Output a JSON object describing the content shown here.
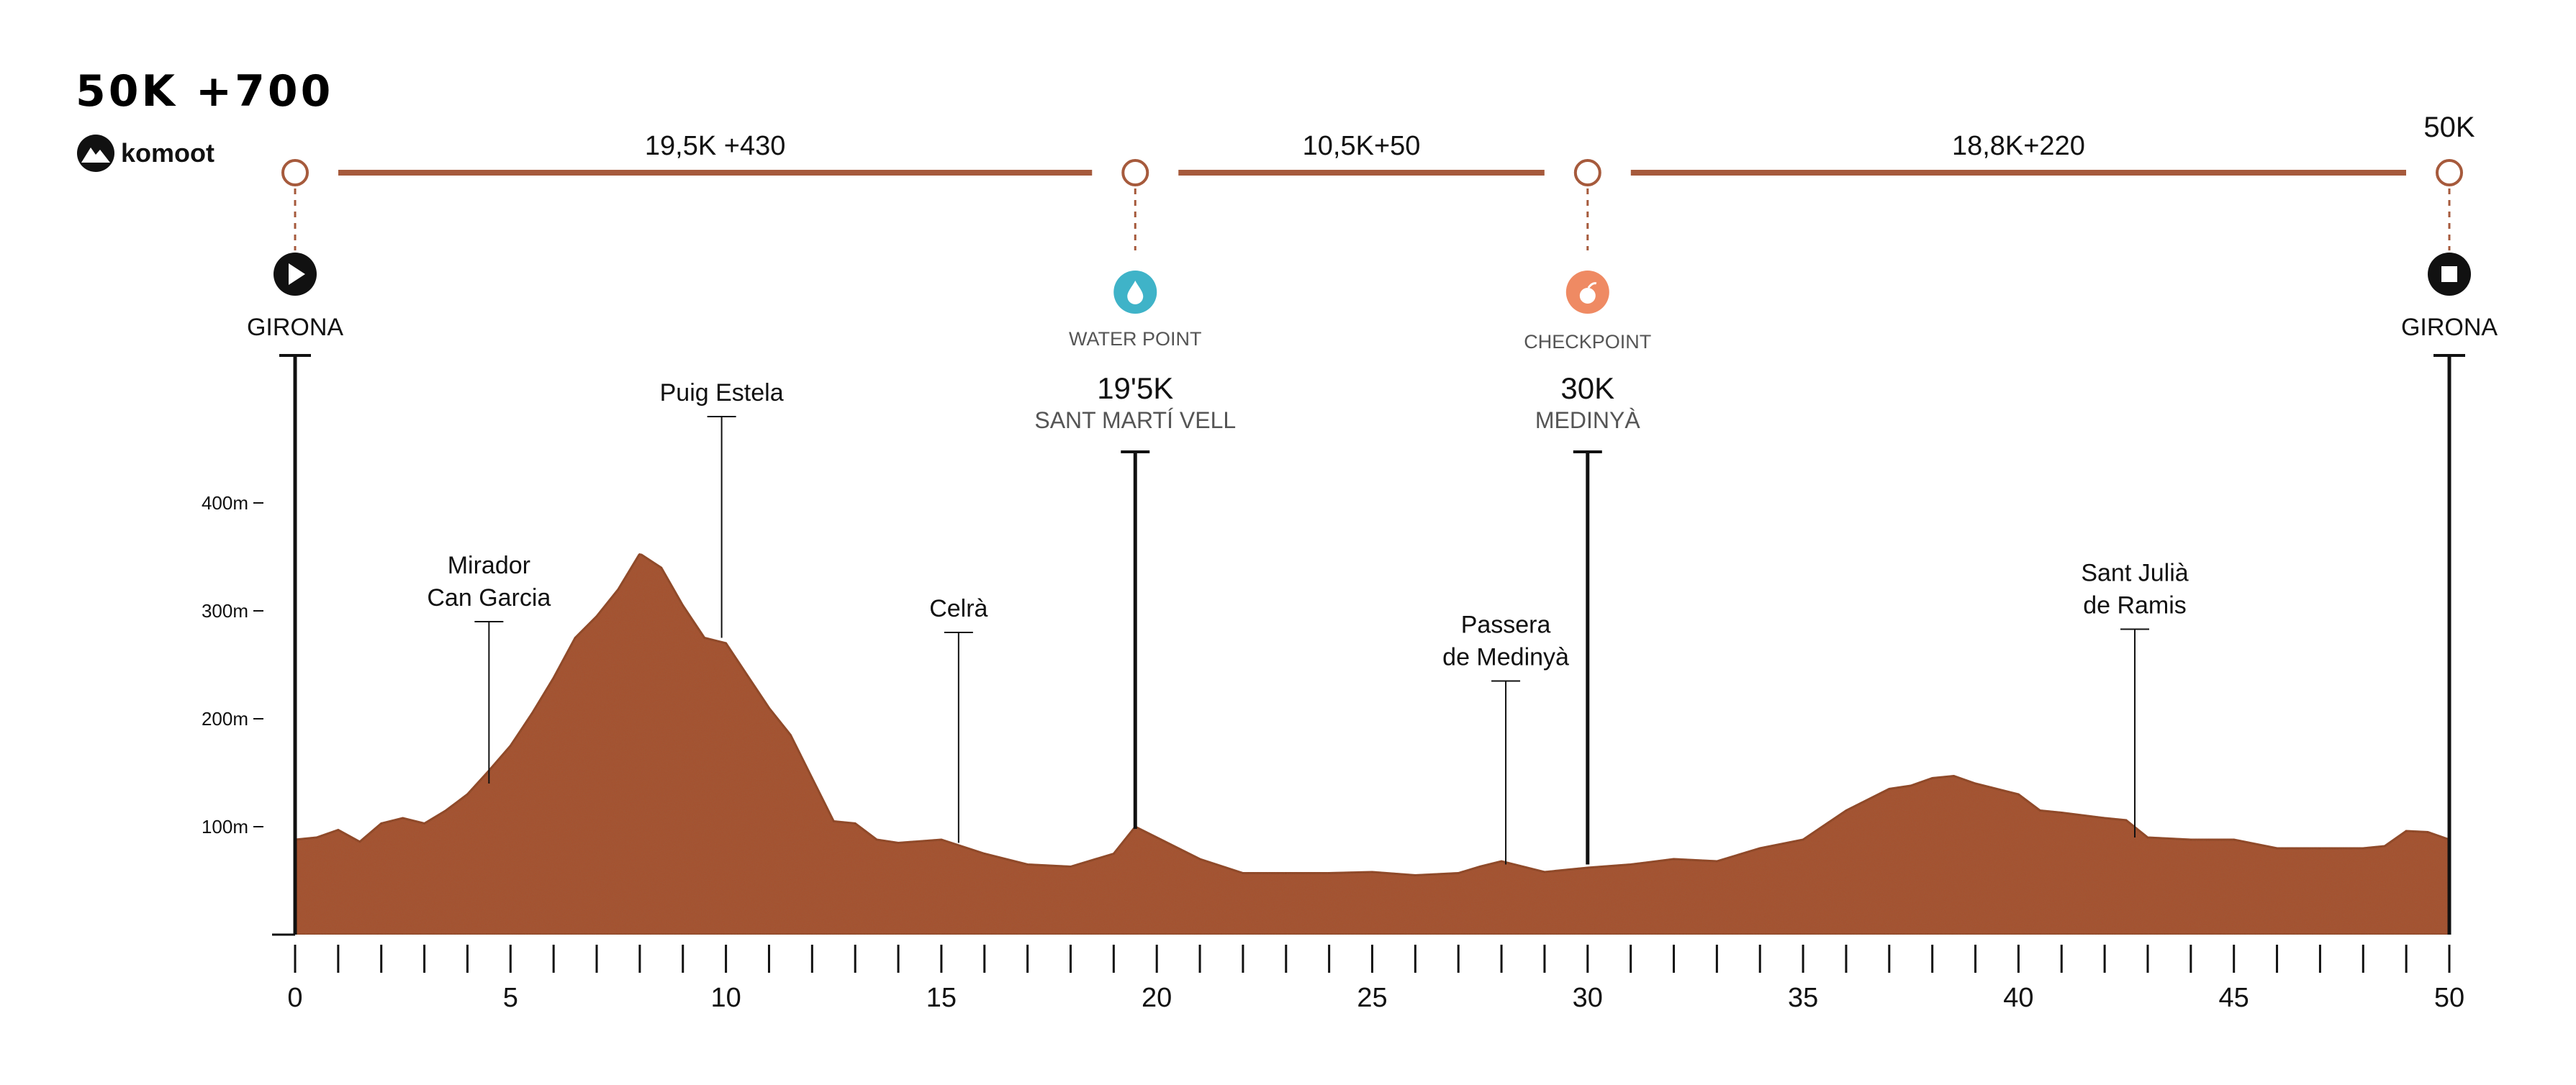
{
  "header": {
    "race_title": "50K +700",
    "brand": "komoot"
  },
  "colors": {
    "accent": "#a65a3c",
    "terrain": "#a8502d",
    "terrain_dark": "#8e4124",
    "water": "#3fb3c8",
    "checkpoint": "#ef8a63",
    "marker": "#111111"
  },
  "segments": [
    {
      "label": "19,5K +430",
      "from_km": 0,
      "to_km": 19.5
    },
    {
      "label": "10,5K+50",
      "from_km": 19.5,
      "to_km": 30
    },
    {
      "label": "18,8K+220",
      "from_km": 30,
      "to_km": 50
    }
  ],
  "stations": [
    {
      "km": 0,
      "label": "GIRONA",
      "icon": "play-icon",
      "kind": "start"
    },
    {
      "km": 19.5,
      "kind": "water",
      "icon": "water-drop-icon",
      "type_label": "WATER POINT",
      "dist_label": "19'5K",
      "place": "SANT MARTÍ VELL"
    },
    {
      "km": 30,
      "kind": "checkpoint",
      "icon": "apple-icon",
      "type_label": "CHECKPOINT",
      "dist_label": "30K",
      "place": "MEDINYÀ"
    },
    {
      "km": 50,
      "label": "GIRONA",
      "icon": "stop-icon",
      "kind": "finish",
      "top_label": "50K"
    }
  ],
  "landmarks": [
    {
      "km": 4.5,
      "elev": 140,
      "top_elev": 290,
      "lines": [
        "Mirador",
        "Can Garcia"
      ]
    },
    {
      "km": 9.9,
      "elev": 275,
      "top_elev": 480,
      "lines": [
        "Puig Estela"
      ]
    },
    {
      "km": 15.4,
      "elev": 85,
      "top_elev": 280,
      "lines": [
        "Celrà"
      ]
    },
    {
      "km": 28.1,
      "elev": 65,
      "top_elev": 235,
      "lines": [
        "Passera",
        "de Medinyà"
      ]
    },
    {
      "km": 42.7,
      "elev": 90,
      "top_elev": 283,
      "lines": [
        "Sant Julià",
        "de Ramis"
      ]
    }
  ],
  "chart_data": {
    "type": "area",
    "title": "50K +700",
    "xlabel": "",
    "ylabel": "",
    "xlim": [
      0,
      50
    ],
    "ylim": [
      0,
      400
    ],
    "x_ticks": [
      0,
      5,
      10,
      15,
      20,
      25,
      30,
      35,
      40,
      45,
      50
    ],
    "y_ticks": [
      100,
      200,
      300,
      400
    ],
    "y_tick_labels": [
      "100m",
      "200m",
      "300m",
      "400m"
    ],
    "grid": false,
    "series": [
      {
        "x": [
          0,
          0.5,
          1,
          1.5,
          2,
          2.5,
          3,
          3.5,
          4,
          4.5,
          5,
          5.5,
          6,
          6.5,
          7,
          7.5,
          8,
          8.5,
          9,
          9.5,
          10,
          10.5,
          11,
          11.5,
          12,
          12.5,
          13,
          13.5,
          14,
          15,
          16,
          17,
          18,
          19,
          19.5,
          20,
          21,
          22,
          23,
          24,
          25,
          26,
          27,
          27.5,
          28,
          29,
          30,
          31,
          32,
          33,
          34,
          35,
          36,
          37,
          37.5,
          38,
          38.5,
          39,
          40,
          40.5,
          41,
          42,
          42.5,
          43,
          44,
          45,
          46,
          47,
          48,
          48.5,
          49,
          49.5,
          50
        ],
        "y": [
          88,
          90,
          97,
          86,
          103,
          108,
          103,
          115,
          130,
          152,
          175,
          205,
          238,
          275,
          295,
          320,
          353,
          340,
          305,
          275,
          270,
          240,
          210,
          185,
          145,
          105,
          103,
          88,
          85,
          88,
          75,
          65,
          63,
          75,
          100,
          90,
          70,
          57,
          57,
          57,
          58,
          55,
          57,
          63,
          68,
          58,
          62,
          65,
          70,
          68,
          80,
          88,
          115,
          135,
          138,
          145,
          147,
          140,
          130,
          115,
          113,
          108,
          106,
          90,
          88,
          88,
          80,
          80,
          80,
          82,
          96,
          95,
          88
        ]
      }
    ]
  }
}
